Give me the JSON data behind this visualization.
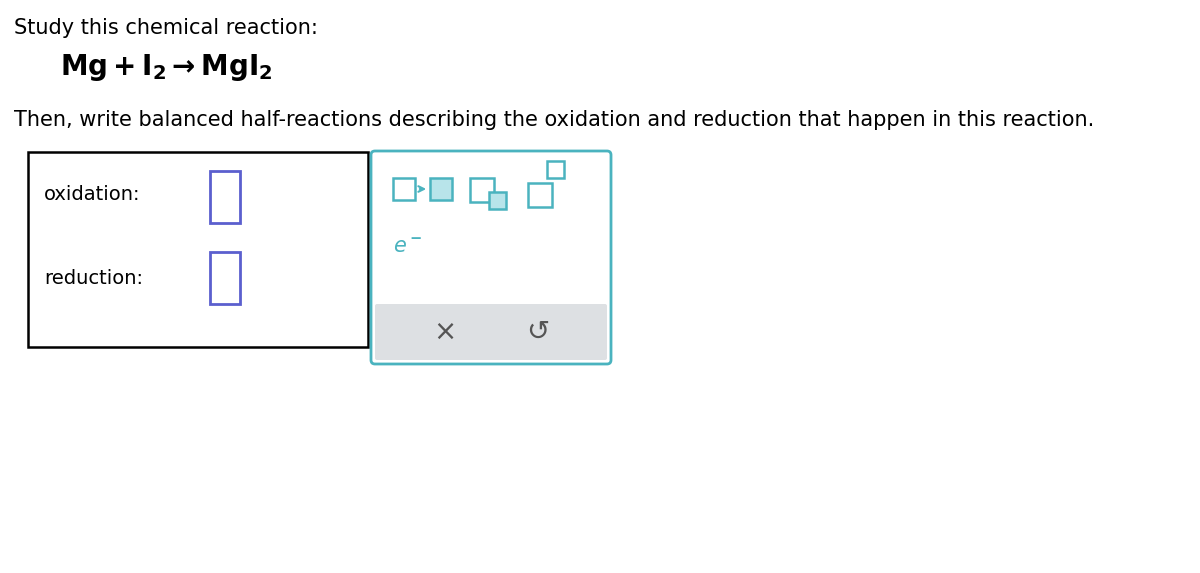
{
  "bg_color": "#ffffff",
  "title_line1": "Study this chemical reaction:",
  "title_line2": "Then, write balanced half-reactions describing the oxidation and reduction that happen in this reaction.",
  "oxidation_label": "oxidation:",
  "reduction_label": "reduction:",
  "input_box_color": "#5b5fce",
  "teal_color": "#4ab3bf",
  "teal_fill": "#b8e4ea",
  "gray_bg": "#dde0e3",
  "text_color": "#000000",
  "text_color_dark": "#1a1a2e",
  "font_size_main": 15,
  "font_size_eq": 20,
  "font_size_label": 13.5
}
